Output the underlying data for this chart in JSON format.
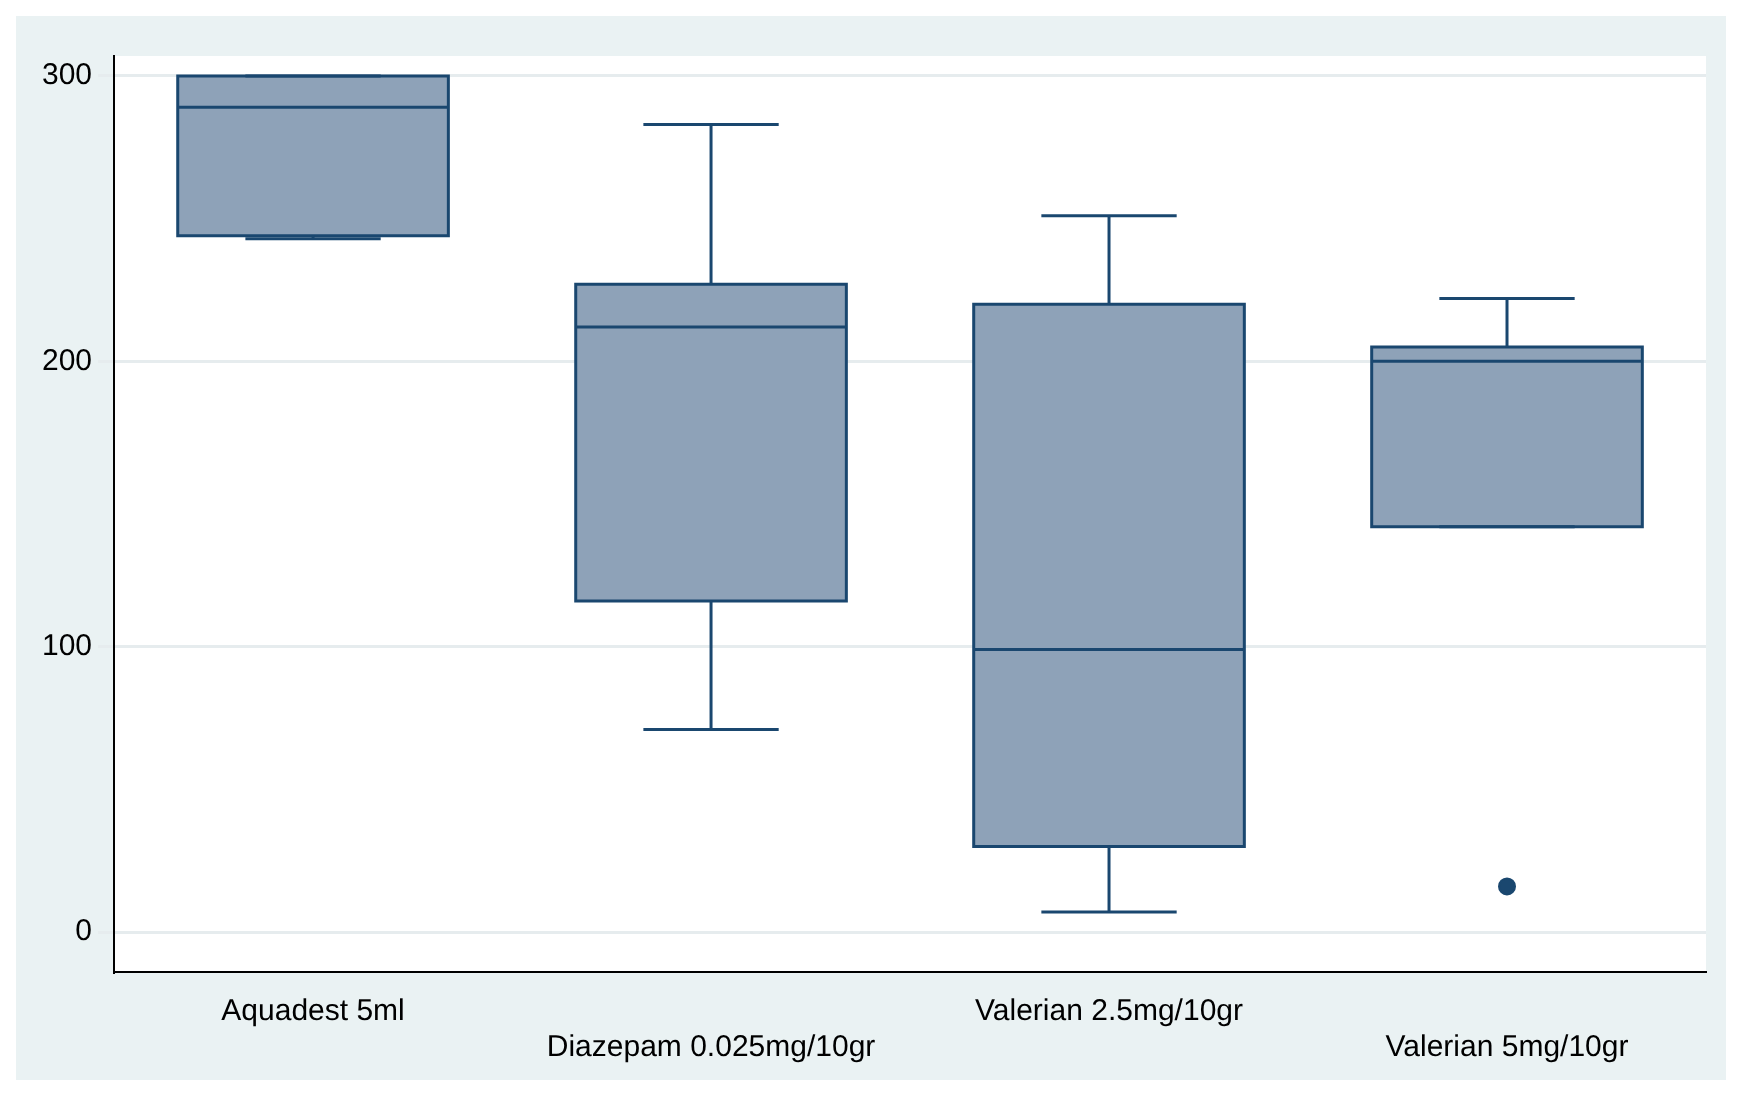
{
  "chart_data": {
    "type": "box",
    "categories": [
      "Aquadest 5ml",
      "Diazepam 0.025mg/10gr",
      "Valerian 2.5mg/10gr",
      "Valerian 5mg/10gr"
    ],
    "series": [
      {
        "color": "#8ea2b8",
        "boxes": [
          {
            "low": 243,
            "q1": 244,
            "median": 289,
            "q3": 300,
            "high": 300
          },
          {
            "low": 71,
            "q1": 116,
            "median": 212,
            "q3": 227,
            "high": 283
          },
          {
            "low": 7,
            "q1": 30,
            "median": 99,
            "q3": 220,
            "high": 251
          },
          {
            "low": 142,
            "q1": 142,
            "median": 200,
            "q3": 205,
            "high": 222,
            "outliers": [
              16
            ]
          }
        ]
      }
    ],
    "ylim": [
      -14,
      307
    ],
    "yticks": [
      0,
      100,
      200,
      300
    ],
    "grid": "y",
    "legend": false
  }
}
